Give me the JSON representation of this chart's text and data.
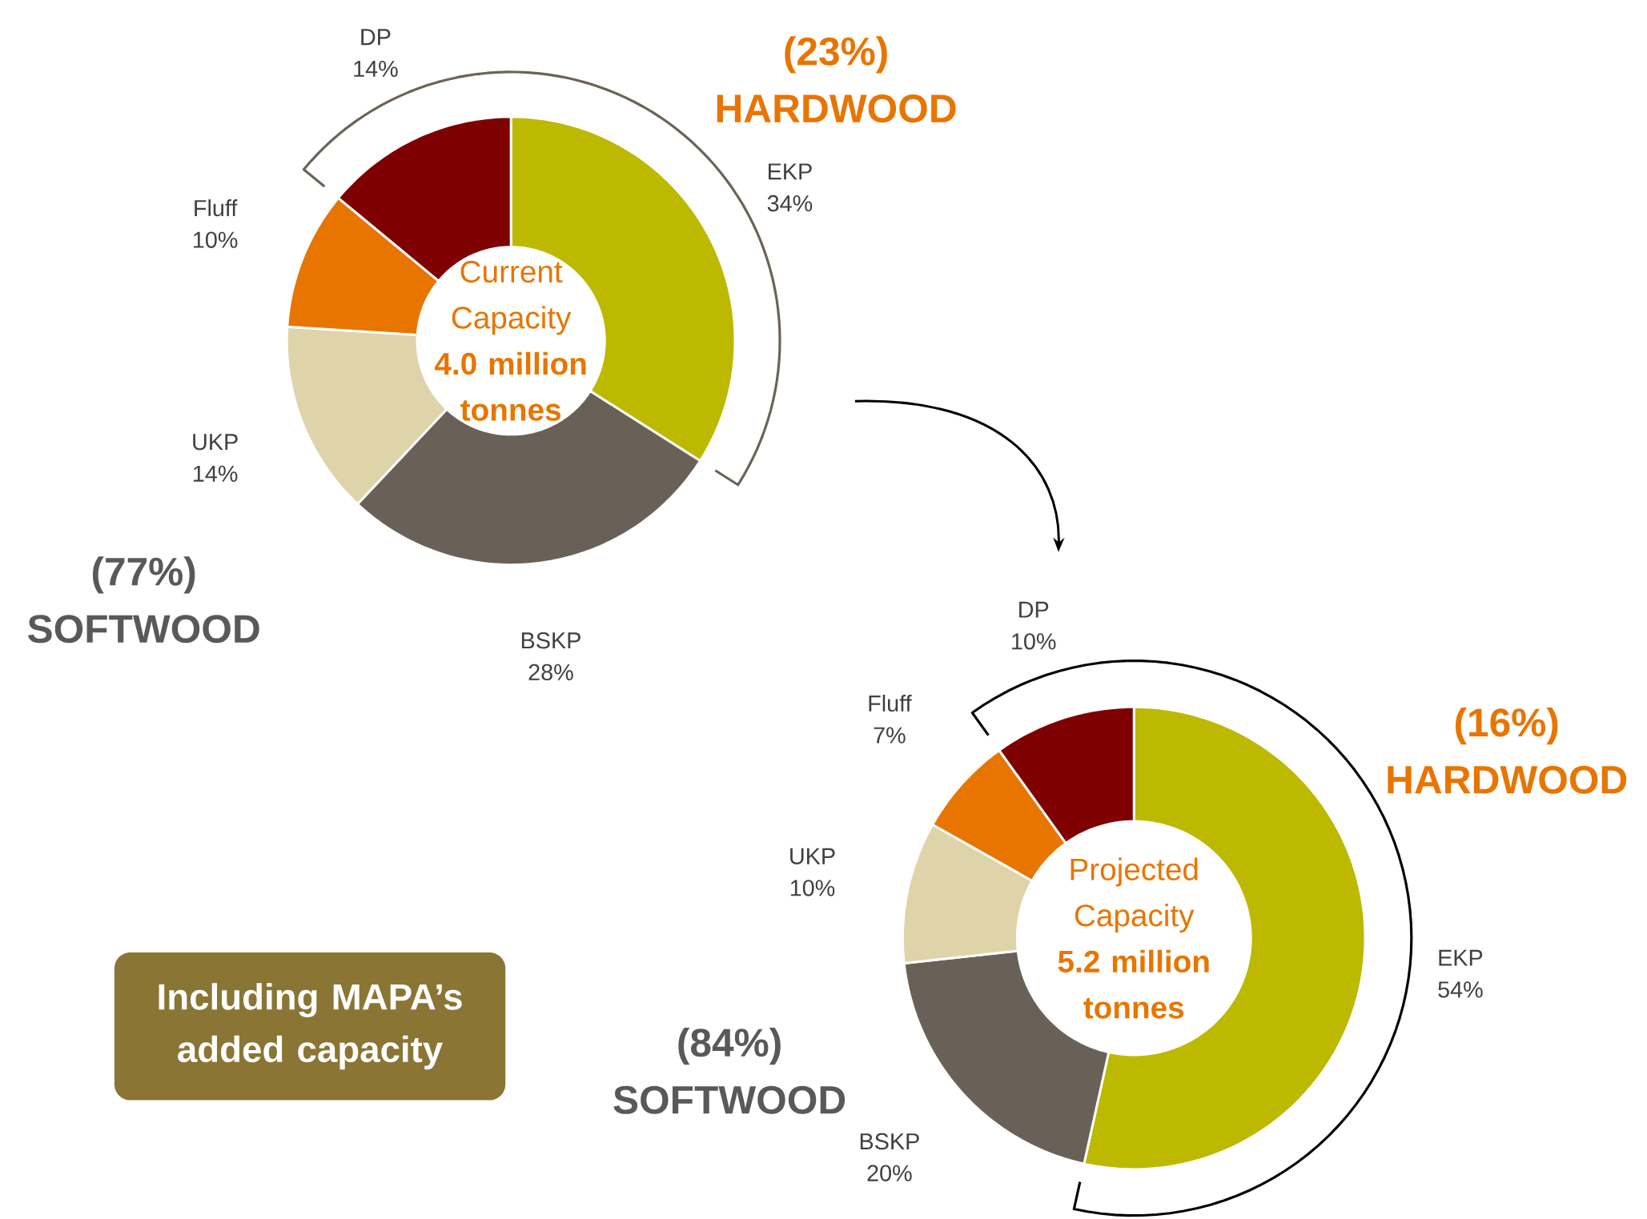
{
  "chart_data": [
    {
      "type": "donut",
      "title": "Current Capacity",
      "subtitle": "4.0 million tonnes",
      "categories": [
        "EKP",
        "BSKP",
        "UKP",
        "Fluff",
        "DP"
      ],
      "values": [
        34,
        28,
        14,
        10,
        14
      ],
      "value_labels": [
        "34%",
        "28%",
        "14%",
        "10%",
        "14%"
      ],
      "colors": [
        "#bdb800",
        "#696158",
        "#dfd3aa",
        "#e87500",
        "#7f0000"
      ],
      "annotations": [
        "(23%) HARDWOOD",
        "(77%) SOFTWOOD"
      ]
    },
    {
      "type": "donut",
      "title": "Projected Capacity",
      "subtitle": "5.2 million tonnes",
      "categories": [
        "EKP",
        "BSKP",
        "UKP",
        "Fluff",
        "DP"
      ],
      "values": [
        54,
        20,
        10,
        7,
        10
      ],
      "value_labels": [
        "54%",
        "20%",
        "10%",
        "7%",
        "10%"
      ],
      "colors": [
        "#bdb800",
        "#696158",
        "#dfd3aa",
        "#e87500",
        "#7f0000"
      ],
      "annotations": [
        "(16%) HARDWOOD",
        "(84%) SOFTWOOD",
        "Including MAPA’s added capacity"
      ]
    }
  ]
}
